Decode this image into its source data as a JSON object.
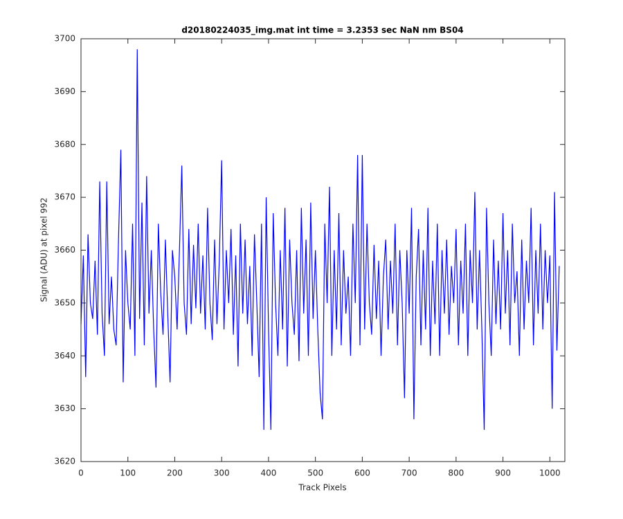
{
  "chart_data": {
    "type": "line",
    "title": "d20180224035_img.mat int time = 3.2353 sec  NaN nm BS04",
    "x_label": "Track Pixels",
    "y_label": "Signal (ADU) at pixel 992",
    "xlim": [
      0,
      1032
    ],
    "ylim": [
      3620,
      3700
    ],
    "xticks": [
      0,
      100,
      200,
      300,
      400,
      500,
      600,
      700,
      800,
      900,
      1000
    ],
    "yticks": [
      3620,
      3630,
      3640,
      3650,
      3660,
      3670,
      3680,
      3690,
      3700
    ],
    "grid": false,
    "x": [
      0,
      5,
      10,
      15,
      20,
      25,
      30,
      35,
      40,
      45,
      50,
      55,
      60,
      65,
      70,
      75,
      80,
      85,
      90,
      95,
      100,
      105,
      110,
      115,
      120,
      125,
      130,
      135,
      140,
      145,
      150,
      155,
      160,
      165,
      170,
      175,
      180,
      185,
      190,
      195,
      200,
      205,
      210,
      215,
      220,
      225,
      230,
      235,
      240,
      245,
      250,
      255,
      260,
      265,
      270,
      275,
      280,
      285,
      290,
      295,
      300,
      305,
      310,
      315,
      320,
      325,
      330,
      335,
      340,
      345,
      350,
      355,
      360,
      365,
      370,
      375,
      380,
      385,
      390,
      395,
      400,
      405,
      410,
      415,
      420,
      425,
      430,
      435,
      440,
      445,
      450,
      455,
      460,
      465,
      470,
      475,
      480,
      485,
      490,
      495,
      500,
      505,
      510,
      515,
      520,
      525,
      530,
      535,
      540,
      545,
      550,
      555,
      560,
      565,
      570,
      575,
      580,
      585,
      590,
      595,
      600,
      605,
      610,
      615,
      620,
      625,
      630,
      635,
      640,
      645,
      650,
      655,
      660,
      665,
      670,
      675,
      680,
      685,
      690,
      695,
      700,
      705,
      710,
      715,
      720,
      725,
      730,
      735,
      740,
      745,
      750,
      755,
      760,
      765,
      770,
      775,
      780,
      785,
      790,
      795,
      800,
      805,
      810,
      815,
      820,
      825,
      830,
      835,
      840,
      845,
      850,
      855,
      860,
      865,
      870,
      875,
      880,
      885,
      890,
      895,
      900,
      905,
      910,
      915,
      920,
      925,
      930,
      935,
      940,
      945,
      950,
      955,
      960,
      965,
      970,
      975,
      980,
      985,
      990,
      995,
      1000,
      1005,
      1010,
      1015,
      1020
    ],
    "series": [
      {
        "color": "#0000ff",
        "values": [
          3646,
          3659,
          3636,
          3663,
          3650,
          3647,
          3658,
          3644,
          3673,
          3648,
          3640,
          3673,
          3646,
          3655,
          3645,
          3642,
          3662,
          3679,
          3635,
          3660,
          3650,
          3645,
          3665,
          3640,
          3698,
          3647,
          3669,
          3642,
          3674,
          3648,
          3660,
          3645,
          3634,
          3665,
          3652,
          3644,
          3662,
          3648,
          3635,
          3660,
          3655,
          3645,
          3660,
          3676,
          3650,
          3644,
          3664,
          3646,
          3661,
          3649,
          3665,
          3648,
          3659,
          3645,
          3668,
          3650,
          3643,
          3662,
          3646,
          3658,
          3677,
          3645,
          3660,
          3650,
          3664,
          3644,
          3659,
          3638,
          3665,
          3648,
          3662,
          3646,
          3657,
          3640,
          3663,
          3650,
          3636,
          3665,
          3626,
          3670,
          3645,
          3626,
          3667,
          3650,
          3640,
          3660,
          3645,
          3668,
          3638,
          3662,
          3650,
          3644,
          3660,
          3639,
          3668,
          3648,
          3662,
          3640,
          3669,
          3647,
          3660,
          3645,
          3633,
          3628,
          3665,
          3650,
          3672,
          3640,
          3660,
          3645,
          3667,
          3642,
          3660,
          3648,
          3655,
          3640,
          3665,
          3650,
          3678,
          3642,
          3678,
          3645,
          3665,
          3650,
          3644,
          3661,
          3647,
          3658,
          3640,
          3655,
          3662,
          3645,
          3658,
          3648,
          3665,
          3642,
          3660,
          3650,
          3632,
          3660,
          3648,
          3668,
          3628,
          3655,
          3664,
          3642,
          3660,
          3645,
          3668,
          3640,
          3658,
          3646,
          3665,
          3640,
          3660,
          3648,
          3662,
          3644,
          3657,
          3650,
          3664,
          3642,
          3658,
          3648,
          3665,
          3640,
          3660,
          3650,
          3671,
          3645,
          3660,
          3645,
          3626,
          3668,
          3650,
          3640,
          3662,
          3646,
          3658,
          3645,
          3667,
          3648,
          3660,
          3642,
          3665,
          3650,
          3656,
          3640,
          3662,
          3645,
          3658,
          3650,
          3668,
          3642,
          3660,
          3648,
          3665,
          3645,
          3660,
          3650,
          3659,
          3630,
          3671,
          3641,
          3657
        ]
      }
    ]
  }
}
